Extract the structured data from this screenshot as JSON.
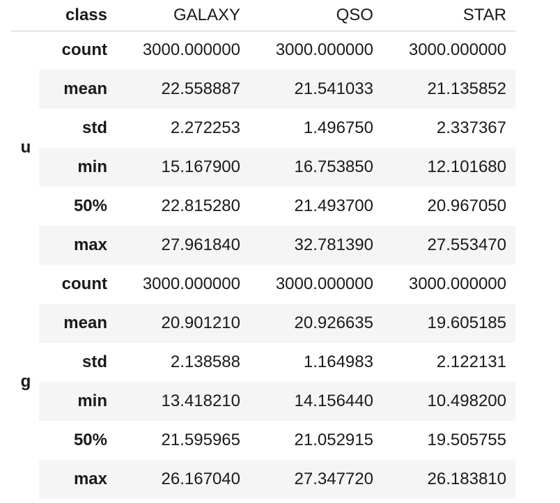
{
  "table": {
    "header": {
      "index_name": "class",
      "columns": [
        "GALAXY",
        "QSO",
        "STAR"
      ]
    },
    "groups": [
      {
        "name": "u",
        "rows": [
          {
            "stat": "count",
            "values": [
              "3000.000000",
              "3000.000000",
              "3000.000000"
            ]
          },
          {
            "stat": "mean",
            "values": [
              "22.558887",
              "21.541033",
              "21.135852"
            ]
          },
          {
            "stat": "std",
            "values": [
              "2.272253",
              "1.496750",
              "2.337367"
            ]
          },
          {
            "stat": "min",
            "values": [
              "15.167900",
              "16.753850",
              "12.101680"
            ]
          },
          {
            "stat": "50%",
            "values": [
              "22.815280",
              "21.493700",
              "20.967050"
            ]
          },
          {
            "stat": "max",
            "values": [
              "27.961840",
              "32.781390",
              "27.553470"
            ]
          }
        ]
      },
      {
        "name": "g",
        "rows": [
          {
            "stat": "count",
            "values": [
              "3000.000000",
              "3000.000000",
              "3000.000000"
            ]
          },
          {
            "stat": "mean",
            "values": [
              "20.901210",
              "20.926635",
              "19.605185"
            ]
          },
          {
            "stat": "std",
            "values": [
              "2.138588",
              "1.164983",
              "2.122131"
            ]
          },
          {
            "stat": "min",
            "values": [
              "13.418210",
              "14.156440",
              "10.498200"
            ]
          },
          {
            "stat": "50%",
            "values": [
              "21.595965",
              "21.052915",
              "19.505755"
            ]
          },
          {
            "stat": "max",
            "values": [
              "26.167040",
              "27.347720",
              "26.183810"
            ]
          }
        ]
      }
    ]
  }
}
